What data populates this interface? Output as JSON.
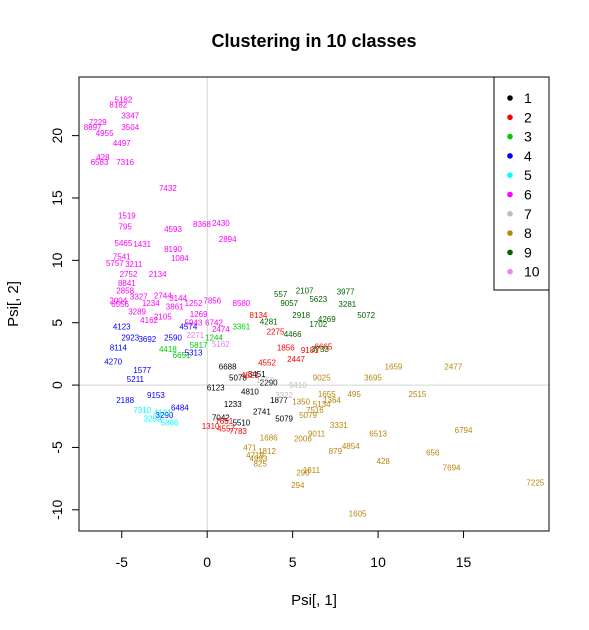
{
  "chart_data": {
    "type": "scatter",
    "title": "Clustering in 10 classes",
    "xlabel": "Psi[, 1]",
    "ylabel": "Psi[, 2]",
    "xlim": [
      -7.5,
      20.0
    ],
    "ylim": [
      -11.7,
      24.7
    ],
    "xticks": [
      -5,
      0,
      5,
      10,
      15
    ],
    "yticks": [
      -10,
      -5,
      0,
      5,
      10,
      15,
      20
    ],
    "reference_lines": {
      "x": 0,
      "y": 0,
      "color": "#d3d3d3"
    },
    "grid": false,
    "legend_position": "top-right",
    "colors": [
      "#000000",
      "#ff0000",
      "#00cd00",
      "#0000ff",
      "#00ffff",
      "#ff00ff",
      "#bebebe",
      "#b8860b",
      "#006400",
      "#ee82ee"
    ],
    "series": [
      {
        "name": "1",
        "color": "#000000",
        "points": [
          {
            "x": 1.5,
            "y": -1.5,
            "label": "1233"
          },
          {
            "x": 2.5,
            "y": -0.5,
            "label": "4810"
          },
          {
            "x": 3.2,
            "y": -2.1,
            "label": "2741"
          },
          {
            "x": 0.5,
            "y": -0.2,
            "label": "6123"
          },
          {
            "x": 1.8,
            "y": 0.6,
            "label": "5078"
          },
          {
            "x": 2.9,
            "y": 0.9,
            "label": "3451"
          },
          {
            "x": 4.2,
            "y": -1.2,
            "label": "1877"
          },
          {
            "x": 0.8,
            "y": -2.6,
            "label": "7042"
          },
          {
            "x": 3.6,
            "y": 0.2,
            "label": "2290"
          },
          {
            "x": 2.0,
            "y": -3.0,
            "label": "5510"
          },
          {
            "x": 4.5,
            "y": -2.7,
            "label": "5079"
          },
          {
            "x": 1.2,
            "y": 1.5,
            "label": "6688"
          }
        ]
      },
      {
        "name": "2",
        "color": "#ff0000",
        "points": [
          {
            "x": 3.5,
            "y": 1.8,
            "label": "4552"
          },
          {
            "x": 5.2,
            "y": 2.1,
            "label": "2447"
          },
          {
            "x": 4.6,
            "y": 3.0,
            "label": "1856"
          },
          {
            "x": 3.0,
            "y": 5.6,
            "label": "8134"
          },
          {
            "x": 2.5,
            "y": 0.8,
            "label": "4821"
          },
          {
            "x": 6.0,
            "y": 2.8,
            "label": "9181"
          },
          {
            "x": 1.0,
            "y": -2.9,
            "label": "7651"
          },
          {
            "x": 1.1,
            "y": -3.5,
            "label": "4557"
          },
          {
            "x": 0.2,
            "y": -3.3,
            "label": "1310"
          },
          {
            "x": 1.8,
            "y": -3.7,
            "label": "7783"
          },
          {
            "x": 4.0,
            "y": 4.3,
            "label": "2275"
          },
          {
            "x": 6.8,
            "y": 3.1,
            "label": "6665"
          }
        ]
      },
      {
        "name": "3",
        "color": "#00cd00",
        "points": [
          {
            "x": 0.4,
            "y": 3.8,
            "label": "1244"
          },
          {
            "x": -1.5,
            "y": 2.4,
            "label": "6651"
          },
          {
            "x": 2.0,
            "y": 4.7,
            "label": "3361"
          },
          {
            "x": -0.5,
            "y": 3.2,
            "label": "5817"
          },
          {
            "x": -2.3,
            "y": 2.9,
            "label": "4418"
          }
        ]
      },
      {
        "name": "4",
        "color": "#0000ff",
        "points": [
          {
            "x": -5.0,
            "y": 4.7,
            "label": "4123"
          },
          {
            "x": -4.5,
            "y": 3.8,
            "label": "2923"
          },
          {
            "x": -5.5,
            "y": 1.9,
            "label": "4270"
          },
          {
            "x": -3.5,
            "y": 3.7,
            "label": "3692"
          },
          {
            "x": -1.1,
            "y": 4.7,
            "label": "4574"
          },
          {
            "x": -2.0,
            "y": 3.8,
            "label": "2590"
          },
          {
            "x": -4.2,
            "y": 0.5,
            "label": "5211"
          },
          {
            "x": -3.0,
            "y": -0.8,
            "label": "9153"
          },
          {
            "x": -1.6,
            "y": -1.8,
            "label": "6484"
          },
          {
            "x": -2.5,
            "y": -2.4,
            "label": "3290"
          },
          {
            "x": -5.2,
            "y": 3.0,
            "label": "8114"
          },
          {
            "x": -3.8,
            "y": 1.2,
            "label": "1577"
          },
          {
            "x": -0.8,
            "y": 2.6,
            "label": "5313"
          },
          {
            "x": -4.8,
            "y": -1.2,
            "label": "2188"
          }
        ]
      },
      {
        "name": "5",
        "color": "#00ffff",
        "points": [
          {
            "x": -3.2,
            "y": -2.7,
            "label": "3259"
          },
          {
            "x": -2.6,
            "y": -2.2,
            "label": "4121"
          },
          {
            "x": -3.8,
            "y": -2.0,
            "label": "7310"
          },
          {
            "x": -2.2,
            "y": -3.0,
            "label": "5866"
          }
        ]
      },
      {
        "name": "6",
        "color": "#ff00ff",
        "points": [
          {
            "x": -4.9,
            "y": 22.9,
            "label": "5182"
          },
          {
            "x": -5.2,
            "y": 22.5,
            "label": "8182"
          },
          {
            "x": -4.5,
            "y": 21.6,
            "label": "3347"
          },
          {
            "x": -6.4,
            "y": 21.1,
            "label": "7229"
          },
          {
            "x": -6.7,
            "y": 20.7,
            "label": "8897"
          },
          {
            "x": -4.5,
            "y": 20.7,
            "label": "3504"
          },
          {
            "x": -6.0,
            "y": 20.2,
            "label": "4955"
          },
          {
            "x": -5.0,
            "y": 19.4,
            "label": "4497"
          },
          {
            "x": -6.1,
            "y": 18.3,
            "label": "428"
          },
          {
            "x": -6.3,
            "y": 17.9,
            "label": "6583"
          },
          {
            "x": -4.8,
            "y": 17.9,
            "label": "7316"
          },
          {
            "x": -2.3,
            "y": 15.8,
            "label": "7432"
          },
          {
            "x": -4.7,
            "y": 13.6,
            "label": "1519"
          },
          {
            "x": -4.8,
            "y": 12.7,
            "label": "795"
          },
          {
            "x": -2.0,
            "y": 12.5,
            "label": "4593"
          },
          {
            "x": -0.3,
            "y": 12.9,
            "label": "8368"
          },
          {
            "x": 0.8,
            "y": 13.0,
            "label": "2430"
          },
          {
            "x": 1.2,
            "y": 11.7,
            "label": "2894"
          },
          {
            "x": -4.9,
            "y": 11.4,
            "label": "5465"
          },
          {
            "x": -3.8,
            "y": 11.3,
            "label": "1431"
          },
          {
            "x": -2.0,
            "y": 10.9,
            "label": "8190"
          },
          {
            "x": -5.0,
            "y": 10.3,
            "label": "7541"
          },
          {
            "x": -1.6,
            "y": 10.2,
            "label": "1084"
          },
          {
            "x": -5.4,
            "y": 9.8,
            "label": "5757"
          },
          {
            "x": -4.3,
            "y": 9.7,
            "label": "3211"
          },
          {
            "x": -4.6,
            "y": 8.9,
            "label": "2752"
          },
          {
            "x": -2.9,
            "y": 8.9,
            "label": "2134"
          },
          {
            "x": -4.7,
            "y": 8.2,
            "label": "8841"
          },
          {
            "x": -4.8,
            "y": 7.6,
            "label": "2858"
          },
          {
            "x": -5.2,
            "y": 6.8,
            "label": "2004"
          },
          {
            "x": -4.0,
            "y": 7.1,
            "label": "3327"
          },
          {
            "x": -2.6,
            "y": 7.2,
            "label": "2744"
          },
          {
            "x": -5.1,
            "y": 6.5,
            "label": "6556"
          },
          {
            "x": -3.3,
            "y": 6.6,
            "label": "1234"
          },
          {
            "x": -1.9,
            "y": 6.3,
            "label": "3861"
          },
          {
            "x": -0.8,
            "y": 6.6,
            "label": "1252"
          },
          {
            "x": 0.3,
            "y": 6.8,
            "label": "7856"
          },
          {
            "x": -4.1,
            "y": 5.9,
            "label": "3289"
          },
          {
            "x": -2.6,
            "y": 5.5,
            "label": "2105"
          },
          {
            "x": -0.5,
            "y": 5.7,
            "label": "1269"
          },
          {
            "x": -0.8,
            "y": 5.0,
            "label": "5943"
          },
          {
            "x": 0.4,
            "y": 5.0,
            "label": "6742"
          },
          {
            "x": 2.0,
            "y": 6.6,
            "label": "8580"
          },
          {
            "x": 0.8,
            "y": 4.5,
            "label": "2474"
          },
          {
            "x": -3.4,
            "y": 5.2,
            "label": "4162"
          },
          {
            "x": -1.7,
            "y": 7.0,
            "label": "3144"
          }
        ]
      },
      {
        "name": "7",
        "color": "#bebebe",
        "points": [
          {
            "x": 5.3,
            "y": 0.0,
            "label": "9410"
          },
          {
            "x": 4.5,
            "y": -0.8,
            "label": "3322"
          },
          {
            "x": 3.4,
            "y": 0.4,
            "label": "1750"
          }
        ]
      },
      {
        "name": "8",
        "color": "#b8860b",
        "points": [
          {
            "x": 10.9,
            "y": 1.5,
            "label": "1659"
          },
          {
            "x": 14.4,
            "y": 1.5,
            "label": "2477"
          },
          {
            "x": 9.7,
            "y": 0.6,
            "label": "3695"
          },
          {
            "x": 12.3,
            "y": -0.7,
            "label": "2515"
          },
          {
            "x": 6.7,
            "y": 0.6,
            "label": "9025"
          },
          {
            "x": 8.6,
            "y": -0.7,
            "label": "495"
          },
          {
            "x": 7.0,
            "y": -0.7,
            "label": "1655"
          },
          {
            "x": 7.3,
            "y": -1.2,
            "label": "1364"
          },
          {
            "x": 5.5,
            "y": -1.3,
            "label": "1350"
          },
          {
            "x": 6.3,
            "y": -2.0,
            "label": "7516"
          },
          {
            "x": 7.7,
            "y": -3.2,
            "label": "3331"
          },
          {
            "x": 10.0,
            "y": -3.9,
            "label": "6513"
          },
          {
            "x": 15.0,
            "y": -3.6,
            "label": "6794"
          },
          {
            "x": 8.4,
            "y": -4.9,
            "label": "4854"
          },
          {
            "x": 7.5,
            "y": -5.3,
            "label": "879"
          },
          {
            "x": 13.2,
            "y": -5.4,
            "label": "656"
          },
          {
            "x": 10.3,
            "y": -6.1,
            "label": "428"
          },
          {
            "x": 14.3,
            "y": -6.6,
            "label": "7694"
          },
          {
            "x": 3.5,
            "y": -5.3,
            "label": "1812"
          },
          {
            "x": 2.8,
            "y": -5.6,
            "label": "4719"
          },
          {
            "x": 2.5,
            "y": -5.0,
            "label": "471"
          },
          {
            "x": 3.0,
            "y": -5.9,
            "label": "4993"
          },
          {
            "x": 3.1,
            "y": -6.3,
            "label": "825"
          },
          {
            "x": 6.1,
            "y": -6.8,
            "label": "1811"
          },
          {
            "x": 5.6,
            "y": -7.0,
            "label": "290"
          },
          {
            "x": 5.3,
            "y": -8.0,
            "label": "294"
          },
          {
            "x": 19.2,
            "y": -7.8,
            "label": "7225"
          },
          {
            "x": 8.8,
            "y": -10.3,
            "label": "1605"
          },
          {
            "x": 3.6,
            "y": -4.2,
            "label": "1686"
          },
          {
            "x": 5.6,
            "y": -4.3,
            "label": "2006"
          },
          {
            "x": 6.4,
            "y": -3.9,
            "label": "9011"
          },
          {
            "x": 5.9,
            "y": -2.4,
            "label": "5079"
          },
          {
            "x": 6.7,
            "y": -1.5,
            "label": "5134"
          }
        ]
      },
      {
        "name": "9",
        "color": "#006400",
        "points": [
          {
            "x": 5.7,
            "y": 7.6,
            "label": "2107"
          },
          {
            "x": 8.1,
            "y": 7.5,
            "label": "3977"
          },
          {
            "x": 4.3,
            "y": 7.3,
            "label": "557"
          },
          {
            "x": 4.8,
            "y": 6.6,
            "label": "9057"
          },
          {
            "x": 6.5,
            "y": 6.9,
            "label": "5623"
          },
          {
            "x": 8.2,
            "y": 6.5,
            "label": "3281"
          },
          {
            "x": 9.3,
            "y": 5.6,
            "label": "5072"
          },
          {
            "x": 3.6,
            "y": 5.1,
            "label": "4281"
          },
          {
            "x": 5.5,
            "y": 5.6,
            "label": "2918"
          },
          {
            "x": 6.5,
            "y": 4.9,
            "label": "1702"
          },
          {
            "x": 7.0,
            "y": 5.3,
            "label": "4269"
          },
          {
            "x": 5.0,
            "y": 4.1,
            "label": "4466"
          },
          {
            "x": 6.6,
            "y": 2.9,
            "label": "3733"
          }
        ]
      },
      {
        "name": "10",
        "color": "#ee82ee",
        "points": [
          {
            "x": 0.8,
            "y": 3.3,
            "label": "5162"
          },
          {
            "x": -0.7,
            "y": 4.0,
            "label": "2271"
          }
        ]
      }
    ]
  }
}
